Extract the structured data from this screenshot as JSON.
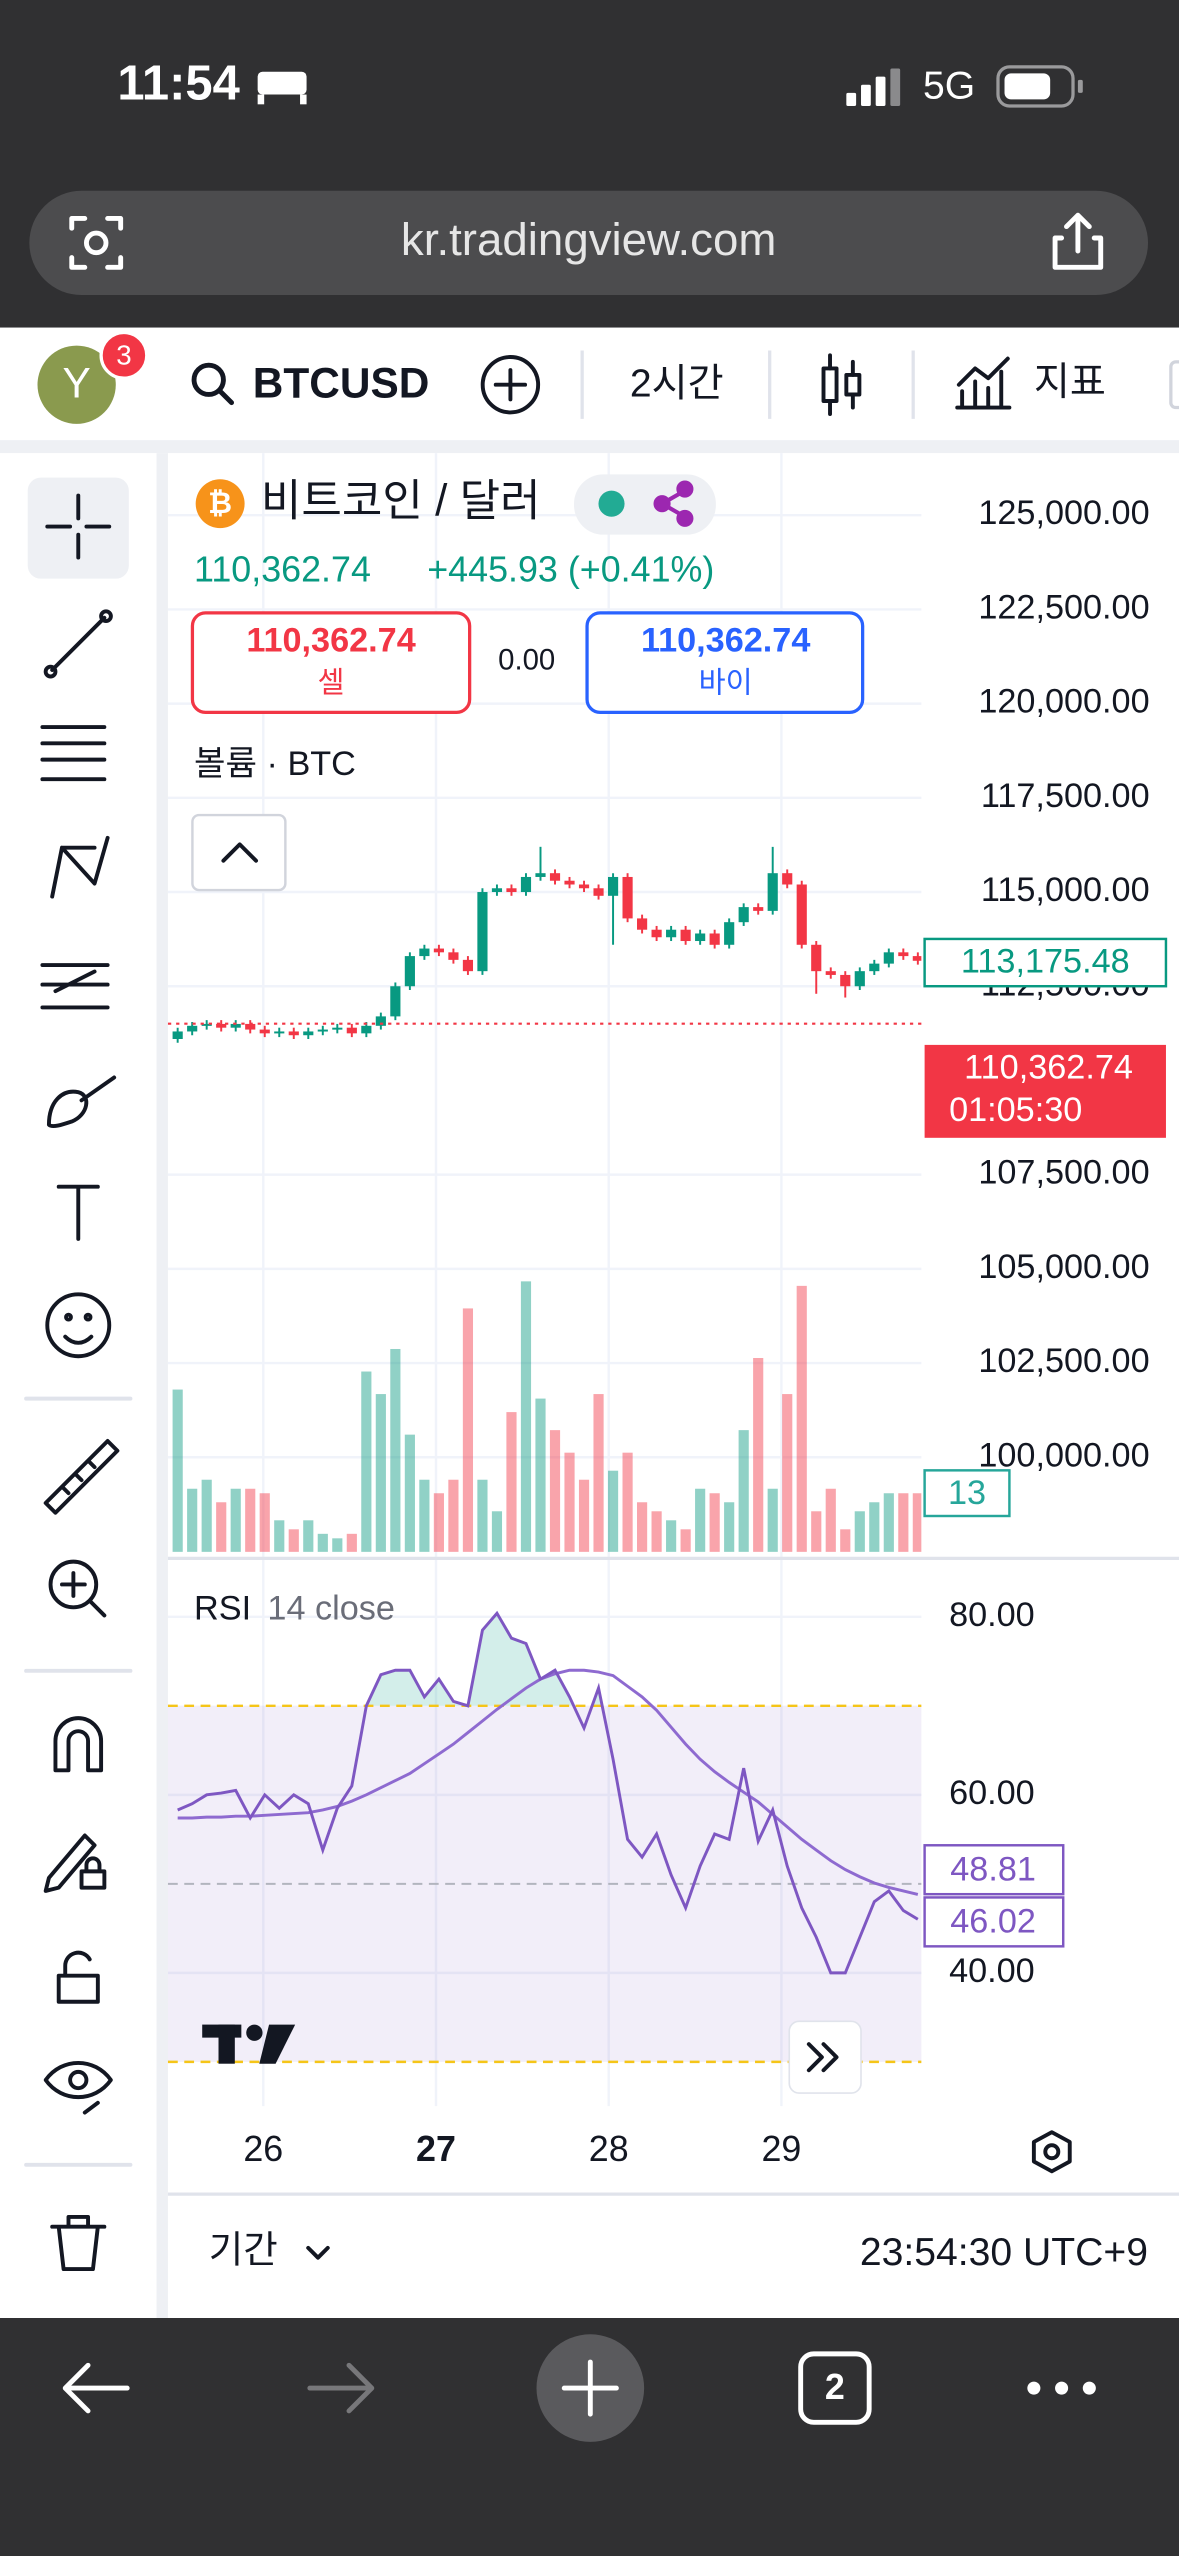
{
  "status": {
    "time": "11:54",
    "network": "5G"
  },
  "browser": {
    "url": "kr.tradingview.com",
    "tabs": "2"
  },
  "toolbar": {
    "avatar": "Y",
    "badge": "3",
    "symbol": "BTCUSD",
    "interval": "2시간",
    "indicators": "지표"
  },
  "legend": {
    "title": "비트코인 / 달러",
    "price": "110,362.74",
    "change": "+445.93 (+0.41%)",
    "sell_price": "110,362.74",
    "sell": "셀",
    "spread": "0.00",
    "buy_price": "110,362.74",
    "buy": "바이",
    "volume_title": "볼륨 · BTC",
    "rsi_title": "RSI",
    "rsi_params": "14 close"
  },
  "labels": {
    "last_close": "113,175.48",
    "price": "110,362.74",
    "countdown": "01:05:30",
    "volume": "13",
    "rsi_ma": "48.81",
    "rsi": "46.02"
  },
  "footer": {
    "range": "기간",
    "clock": "23:54:30 UTC+9"
  },
  "chart_data": {
    "type": "candlestick",
    "up_color": "#089981",
    "down_color": "#f23645",
    "grid": true,
    "xlim": [
      -0.5,
      51.5
    ],
    "xticks": [
      {
        "value": 5.9,
        "label": "26"
      },
      {
        "value": 17.8,
        "label": "27"
      },
      {
        "value": 29.7,
        "label": "28"
      },
      {
        "value": 41.6,
        "label": "29"
      }
    ],
    "ylim": [
      97360,
      126560
    ],
    "yticks": [
      {
        "value": 125000,
        "label": "125,000.00"
      },
      {
        "value": 122500,
        "label": "122,500.00"
      },
      {
        "value": 120000,
        "label": "120,000.00"
      },
      {
        "value": 117500,
        "label": "117,500.00"
      },
      {
        "value": 115000,
        "label": "115,000.00"
      },
      {
        "value": 112500,
        "label": "112,500.00"
      },
      {
        "value": 107500,
        "label": "107,500.00"
      },
      {
        "value": 105000,
        "label": "105,000.00"
      },
      {
        "value": 102500,
        "label": "102,500.00"
      },
      {
        "value": 100000,
        "label": "100,000.00"
      }
    ],
    "open": [
      111100,
      111300,
      111450,
      111500,
      111400,
      111500,
      111350,
      111250,
      111300,
      111200,
      111300,
      111350,
      111400,
      111250,
      111450,
      111700,
      112500,
      113300,
      113500,
      113400,
      113200,
      112900,
      115000,
      115100,
      115000,
      115400,
      115500,
      115300,
      115200,
      115100,
      114900,
      115400,
      114300,
      114000,
      113800,
      114000,
      113700,
      113900,
      113600,
      114200,
      114600,
      114500,
      115500,
      115200,
      113600,
      112900,
      112800,
      112500,
      112900,
      113100,
      113400,
      113300
    ],
    "high": [
      111400,
      111550,
      111600,
      111600,
      111600,
      111600,
      111450,
      111400,
      111400,
      111400,
      111450,
      111500,
      111500,
      111550,
      111800,
      112600,
      113400,
      113600,
      113600,
      113500,
      113300,
      115100,
      115200,
      115200,
      115500,
      116200,
      115600,
      115400,
      115300,
      115200,
      115500,
      115500,
      114400,
      114100,
      114100,
      114100,
      114000,
      114000,
      114300,
      114700,
      114700,
      116200,
      115600,
      115300,
      113700,
      113000,
      112900,
      113000,
      113200,
      113500,
      113500,
      113400
    ],
    "low": [
      111000,
      111200,
      111350,
      111300,
      111300,
      111250,
      111150,
      111150,
      111100,
      111100,
      111200,
      111250,
      111150,
      111150,
      111350,
      111600,
      112400,
      113200,
      113300,
      113100,
      112800,
      112800,
      114900,
      114900,
      114900,
      115300,
      115200,
      115100,
      115000,
      114800,
      113600,
      114200,
      113900,
      113700,
      113700,
      113600,
      113600,
      113500,
      113500,
      114100,
      114400,
      114400,
      115100,
      113500,
      112300,
      112700,
      112200,
      112400,
      112800,
      113000,
      113200,
      113075
    ],
    "close": [
      111300,
      111450,
      111500,
      111400,
      111500,
      111350,
      111250,
      111300,
      111200,
      111300,
      111350,
      111400,
      111250,
      111450,
      111700,
      112500,
      113300,
      113500,
      113400,
      113200,
      112900,
      115000,
      115100,
      115000,
      115400,
      115500,
      115300,
      115200,
      115100,
      114900,
      115400,
      114300,
      114000,
      113800,
      114000,
      113700,
      113900,
      113600,
      114200,
      114600,
      114500,
      115500,
      115200,
      113600,
      112900,
      112800,
      112500,
      112900,
      113100,
      113400,
      113300,
      113175.48
    ],
    "volume": {
      "ylim": [
        0,
        64
      ],
      "values": [
        36,
        14,
        16,
        11,
        14,
        14,
        13,
        7,
        5,
        7,
        4,
        3,
        4,
        40,
        35,
        45,
        26,
        16,
        13,
        16,
        54,
        16,
        9,
        31,
        60,
        34,
        27,
        22,
        16,
        35,
        18,
        22,
        11,
        9,
        7,
        5,
        14,
        13,
        11,
        27,
        43,
        14,
        35,
        59,
        9,
        14,
        5,
        9,
        11,
        13,
        13,
        13
      ]
    },
    "rsi": {
      "color": "#7e57c2",
      "ma_color": "#8e6ad0",
      "ylim": [
        25.4,
        86.2
      ],
      "yticks": [
        {
          "value": 80,
          "label": "80.00"
        },
        {
          "value": 60,
          "label": "60.00"
        },
        {
          "value": 40,
          "label": "40.00"
        }
      ],
      "bands": [
        70,
        30
      ],
      "values": [
        58.3,
        59,
        60,
        60.2,
        60.5,
        57.4,
        60,
        58.5,
        60,
        59,
        53.8,
        58.5,
        61,
        70,
        73.5,
        74,
        74,
        71,
        73,
        70.5,
        70,
        78.5,
        80.4,
        77.6,
        77,
        73,
        74,
        71,
        67.5,
        72,
        64,
        55,
        53,
        55.6,
        51,
        47.3,
        52,
        55.6,
        55,
        63,
        54.8,
        58.3,
        52,
        47.3,
        44,
        40,
        40,
        44,
        48,
        49.2,
        47,
        46.02
      ],
      "ma": [
        57.4,
        57.4,
        57.5,
        57.5,
        57.6,
        57.6,
        57.7,
        57.8,
        57.9,
        58,
        58.3,
        58.7,
        59.3,
        60,
        60.8,
        61.6,
        62.4,
        63.5,
        64.6,
        65.7,
        67,
        68.3,
        69.6,
        70.8,
        72,
        73,
        73.6,
        74,
        74,
        73.8,
        73.4,
        72.2,
        71,
        69.5,
        67.6,
        65.7,
        64,
        62.6,
        61.4,
        60.3,
        59.2,
        57.8,
        56.4,
        55,
        53.8,
        52.6,
        51.6,
        50.8,
        50.1,
        49.6,
        49.2,
        48.81
      ]
    }
  }
}
